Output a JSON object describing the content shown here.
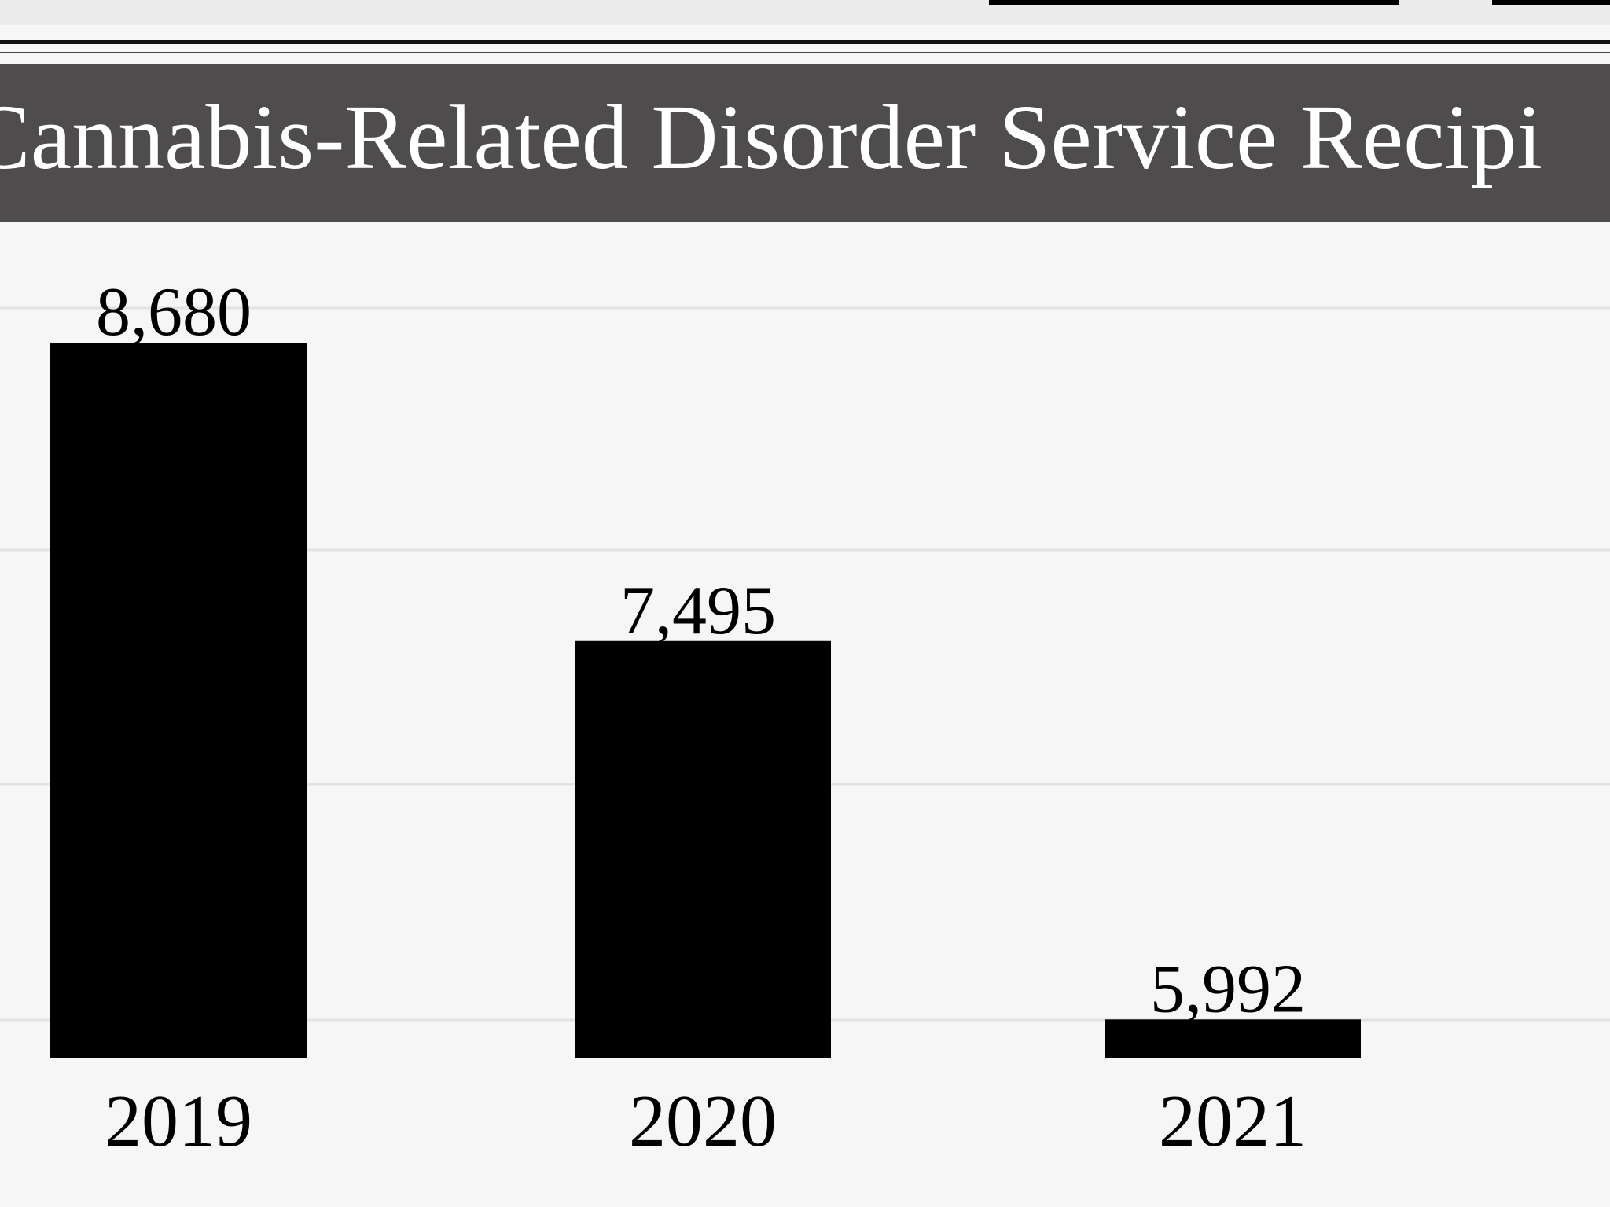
{
  "colors": {
    "bar": "#000000",
    "title_bar": "#4e4c4d",
    "title_text": "#ffffff",
    "gridline": "#e2e2e2",
    "background": "#f6f6f6"
  },
  "chart_data": {
    "type": "bar",
    "title": "Cannabis-Related Disorder Service Recipi",
    "categories": [
      "2019",
      "2020",
      "2021"
    ],
    "values": [
      8680,
      7495,
      5992
    ],
    "value_labels": [
      "8,680",
      "7,495",
      "5,992"
    ],
    "xlabel": "",
    "ylabel": "",
    "ylim": [
      5840,
      8980
    ],
    "grid": true,
    "legend": "none"
  }
}
